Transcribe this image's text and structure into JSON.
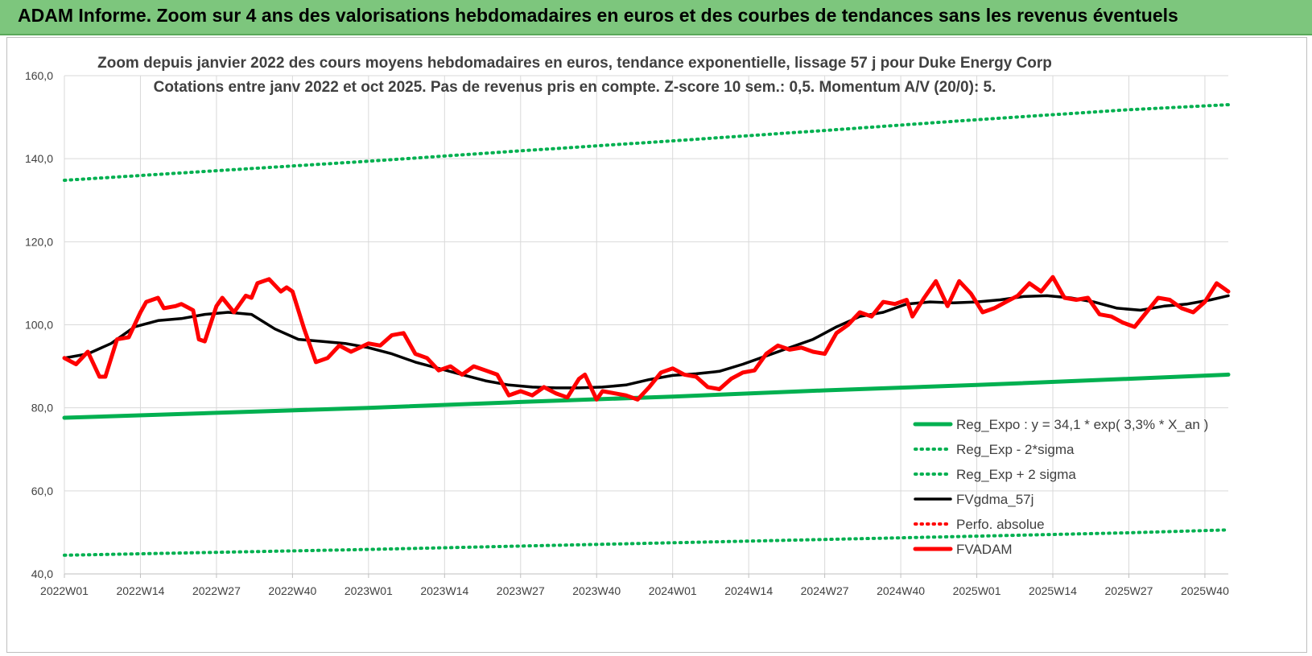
{
  "banner": {
    "title": "ADAM Informe. Zoom sur 4 ans des valorisations hebdomadaires en euros et des courbes de tendances sans les revenus éventuels"
  },
  "chart_data": {
    "type": "line",
    "title": "Zoom depuis janvier 2022 des cours moyens hebdomadaires en euros, tendance exponentielle, lissage 57 j pour Duke Energy Corp",
    "subtitle": "Cotations entre janv 2022 et oct 2025. Pas de revenus pris en compte. Z-score 10 sem.: 0,5. Momentum A/V (20/0): 5.",
    "xlabel": "",
    "ylabel": "",
    "ylim": [
      40,
      160
    ],
    "yticks": [
      "40,0",
      "60,0",
      "80,0",
      "100,0",
      "120,0",
      "140,0",
      "160,0"
    ],
    "xticks": [
      "2022W01",
      "2022W14",
      "2022W27",
      "2022W40",
      "2023W01",
      "2023W14",
      "2023W27",
      "2023W40",
      "2024W01",
      "2024W14",
      "2024W27",
      "2024W40",
      "2025W01",
      "2025W14",
      "2025W27",
      "2025W40"
    ],
    "grid": true,
    "legend_position": "bottom-right",
    "series": [
      {
        "name": "Reg_Expo : y = 34,1 * exp( 3,3% * X_an )",
        "color": "#00b050",
        "style": "solid-thick",
        "x": [
          "2022W01",
          "2022W27",
          "2023W01",
          "2023W27",
          "2024W01",
          "2024W27",
          "2025W01",
          "2025W27",
          "2025W44"
        ],
        "values": [
          77.6,
          78.8,
          80.0,
          81.4,
          82.7,
          84.2,
          85.5,
          87.0,
          88.0
        ]
      },
      {
        "name": "Reg_Exp - 2*sigma",
        "color": "#00b050",
        "style": "dotted",
        "x": [
          "2022W01",
          "2022W27",
          "2023W01",
          "2023W27",
          "2024W01",
          "2024W27",
          "2025W01",
          "2025W27",
          "2025W44"
        ],
        "values": [
          44.5,
          45.2,
          45.9,
          46.7,
          47.5,
          48.3,
          49.1,
          49.9,
          50.6
        ]
      },
      {
        "name": "Reg_Exp + 2 sigma",
        "color": "#00b050",
        "style": "dotted",
        "x": [
          "2022W01",
          "2022W27",
          "2023W01",
          "2023W27",
          "2024W01",
          "2024W27",
          "2025W01",
          "2025W27",
          "2025W44"
        ],
        "values": [
          134.8,
          137.1,
          139.4,
          141.9,
          144.3,
          146.8,
          149.4,
          151.8,
          153.0
        ]
      },
      {
        "name": "FVgdma_57j",
        "color": "#000000",
        "style": "solid",
        "x": [
          "2022W01",
          "2022W05",
          "2022W09",
          "2022W13",
          "2022W17",
          "2022W21",
          "2022W25",
          "2022W29",
          "2022W33",
          "2022W37",
          "2022W41",
          "2022W45",
          "2022W49",
          "2023W01",
          "2023W05",
          "2023W09",
          "2023W13",
          "2023W17",
          "2023W21",
          "2023W25",
          "2023W29",
          "2023W33",
          "2023W37",
          "2023W41",
          "2023W45",
          "2023W49",
          "2024W01",
          "2024W05",
          "2024W09",
          "2024W13",
          "2024W17",
          "2024W21",
          "2024W25",
          "2024W29",
          "2024W33",
          "2024W37",
          "2024W41",
          "2024W45",
          "2024W49",
          "2025W01",
          "2025W05",
          "2025W09",
          "2025W13",
          "2025W17",
          "2025W21",
          "2025W25",
          "2025W29",
          "2025W33",
          "2025W37",
          "2025W41",
          "2025W44"
        ],
        "values": [
          92.0,
          93.0,
          95.5,
          99.5,
          101.0,
          101.5,
          102.5,
          103.0,
          102.5,
          99.0,
          96.5,
          96.0,
          95.5,
          94.5,
          93.0,
          91.0,
          89.5,
          88.0,
          86.5,
          85.5,
          85.0,
          84.8,
          84.8,
          85.0,
          85.5,
          86.8,
          87.8,
          88.2,
          88.8,
          90.5,
          92.5,
          94.5,
          96.5,
          99.5,
          102.0,
          103.0,
          105.0,
          105.5,
          105.3,
          105.5,
          106.0,
          106.8,
          107.0,
          106.5,
          105.5,
          104.0,
          103.5,
          104.5,
          105.0,
          106.0,
          107.0
        ]
      },
      {
        "name": "Perfo. absolue",
        "color": "#ff0000",
        "style": "dotted",
        "x": [],
        "values": []
      },
      {
        "name": "FVADAM",
        "color": "#ff0000",
        "style": "solid-thick",
        "x": [
          "2022W01",
          "2022W03",
          "2022W05",
          "2022W07",
          "2022W08",
          "2022W10",
          "2022W12",
          "2022W14",
          "2022W15",
          "2022W17",
          "2022W18",
          "2022W20",
          "2022W21",
          "2022W23",
          "2022W24",
          "2022W25",
          "2022W27",
          "2022W28",
          "2022W30",
          "2022W32",
          "2022W33",
          "2022W34",
          "2022W36",
          "2022W38",
          "2022W39",
          "2022W40",
          "2022W42",
          "2022W44",
          "2022W46",
          "2022W48",
          "2022W50",
          "2023W01",
          "2023W03",
          "2023W05",
          "2023W07",
          "2023W09",
          "2023W11",
          "2023W13",
          "2023W15",
          "2023W17",
          "2023W19",
          "2023W21",
          "2023W23",
          "2023W25",
          "2023W27",
          "2023W29",
          "2023W31",
          "2023W33",
          "2023W35",
          "2023W37",
          "2023W38",
          "2023W40",
          "2023W41",
          "2023W43",
          "2023W45",
          "2023W47",
          "2023W49",
          "2023W51",
          "2024W01",
          "2024W03",
          "2024W05",
          "2024W07",
          "2024W09",
          "2024W11",
          "2024W13",
          "2024W15",
          "2024W17",
          "2024W19",
          "2024W21",
          "2024W23",
          "2024W25",
          "2024W27",
          "2024W29",
          "2024W31",
          "2024W33",
          "2024W35",
          "2024W37",
          "2024W39",
          "2024W41",
          "2024W42",
          "2024W44",
          "2024W46",
          "2024W48",
          "2024W50",
          "2024W52",
          "2025W02",
          "2025W04",
          "2025W06",
          "2025W08",
          "2025W10",
          "2025W12",
          "2025W14",
          "2025W16",
          "2025W18",
          "2025W20",
          "2025W22",
          "2025W24",
          "2025W26",
          "2025W28",
          "2025W30",
          "2025W32",
          "2025W34",
          "2025W36",
          "2025W38",
          "2025W40",
          "2025W42",
          "2025W44"
        ],
        "values": [
          92,
          90.5,
          93.5,
          87.5,
          87.5,
          96.5,
          97,
          103,
          105.5,
          106.5,
          104,
          104.5,
          105,
          103.5,
          96.5,
          96,
          104.5,
          106.5,
          103,
          107,
          106.5,
          110,
          111,
          108,
          109,
          108,
          99,
          91,
          92,
          95,
          93.5,
          95.5,
          95,
          97.5,
          98,
          93,
          92,
          89,
          90,
          88,
          90,
          89,
          88,
          83,
          84,
          83,
          85,
          83.5,
          82.5,
          87,
          88,
          82,
          84,
          83.5,
          83,
          82,
          85,
          88.5,
          89.5,
          88,
          87.5,
          85,
          84.5,
          87,
          88.5,
          89,
          93,
          95,
          94,
          94.5,
          93.5,
          93,
          98,
          100,
          103,
          102,
          105.5,
          105,
          106,
          102,
          106.5,
          110.5,
          104.5,
          110.5,
          107.5,
          103,
          104,
          105.5,
          107,
          110,
          108,
          111.5,
          106.5,
          106,
          106.5,
          102.5,
          102,
          100.5,
          99.5,
          103,
          106.5,
          106,
          104,
          103,
          105.5,
          110,
          108
        ]
      }
    ]
  }
}
